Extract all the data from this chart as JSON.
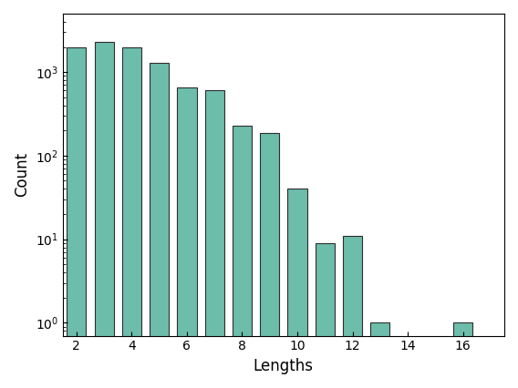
{
  "bar_data": [
    {
      "x": 2,
      "count": 2000
    },
    {
      "x": 3,
      "count": 2300
    },
    {
      "x": 4,
      "count": 2000
    },
    {
      "x": 5,
      "count": 1300
    },
    {
      "x": 6,
      "count": 650
    },
    {
      "x": 7,
      "count": 600
    },
    {
      "x": 8,
      "count": 230
    },
    {
      "x": 9,
      "count": 185
    },
    {
      "x": 10,
      "count": 40
    },
    {
      "x": 11,
      "count": 9
    },
    {
      "x": 12,
      "count": 11
    },
    {
      "x": 13,
      "count": 1
    },
    {
      "x": 16,
      "count": 1
    }
  ],
  "bar_color": "#6dbdab",
  "edge_color": "#2d2d2d",
  "xlabel": "Lengths",
  "ylabel": "Count",
  "xlim": [
    1.5,
    17.5
  ],
  "ylim_bottom": 0.7,
  "ylim_top": 5000,
  "xticks": [
    2,
    4,
    6,
    8,
    10,
    12,
    14,
    16
  ],
  "bar_width": 0.7,
  "figsize": [
    5.68,
    4.26
  ],
  "dpi": 100
}
